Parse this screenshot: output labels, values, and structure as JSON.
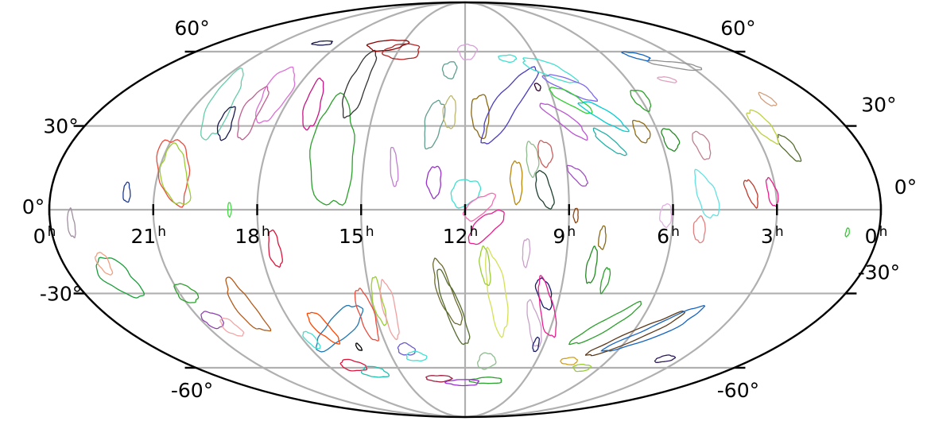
{
  "chart_data": {
    "type": "skymap",
    "projection": "mollweide",
    "grid": true,
    "dec_grid_deg": [
      -60,
      -30,
      0,
      30,
      60
    ],
    "ra_grid_hours": [
      0,
      3,
      6,
      9,
      12,
      15,
      18,
      21,
      24
    ],
    "dec_labels_left": [
      {
        "dec": 60,
        "text": "60°"
      },
      {
        "dec": 30,
        "text": "30°"
      },
      {
        "dec": 0,
        "text": "0°"
      },
      {
        "dec": -30,
        "text": "-30°"
      },
      {
        "dec": -60,
        "text": "-60°"
      }
    ],
    "dec_labels_right": [
      {
        "dec": 60,
        "text": "60°"
      },
      {
        "dec": 30,
        "text": "30°"
      },
      {
        "dec": 0,
        "text": "0°"
      },
      {
        "dec": -30,
        "text": "-30°"
      },
      {
        "dec": -60,
        "text": "-60°"
      }
    ],
    "ra_labels": [
      {
        "ra": 24,
        "value": "0",
        "unit": "h"
      },
      {
        "ra": 21,
        "value": "21",
        "unit": "h"
      },
      {
        "ra": 18,
        "value": "18",
        "unit": "h"
      },
      {
        "ra": 15,
        "value": "15",
        "unit": "h"
      },
      {
        "ra": 12,
        "value": "12",
        "unit": "h"
      },
      {
        "ra": 9,
        "value": "9",
        "unit": "h"
      },
      {
        "ra": 6,
        "value": "6",
        "unit": "h"
      },
      {
        "ra": 3,
        "value": "3",
        "unit": "h"
      },
      {
        "ra": 0,
        "value": "0",
        "unit": "h"
      }
    ],
    "contours": [
      {
        "ra": 20.6,
        "dec": 14,
        "w": 12,
        "h": 26,
        "rot": 30,
        "color": "#e74c3c"
      },
      {
        "ra": 20.5,
        "dec": 12,
        "w": 10,
        "h": 24,
        "rot": 30,
        "color": "#9acd32"
      },
      {
        "ra": 21.8,
        "dec": 6,
        "w": 3,
        "h": 7,
        "rot": 10,
        "color": "#1f3a93"
      },
      {
        "ra": 20.2,
        "dec": 38,
        "w": 9,
        "h": 28,
        "rot": 20,
        "color": "#66cdaa"
      },
      {
        "ra": 18.6,
        "dec": 42,
        "w": 10,
        "h": 22,
        "rot": 15,
        "color": "#da70d6"
      },
      {
        "ra": 19.0,
        "dec": 35,
        "w": 7,
        "h": 20,
        "rot": 10,
        "color": "#c06090"
      },
      {
        "ra": 19.6,
        "dec": 31,
        "w": 5,
        "h": 13,
        "rot": 20,
        "color": "#1a1a4e"
      },
      {
        "ra": 17.1,
        "dec": 38,
        "w": 6,
        "h": 20,
        "rot": 15,
        "color": "#c71585"
      },
      {
        "ra": 16.0,
        "dec": 20,
        "w": 18,
        "h": 40,
        "rot": 10,
        "color": "#2ca02c"
      },
      {
        "ra": 15.9,
        "dec": 46,
        "w": 7,
        "h": 27,
        "rot": 5,
        "color": "#333333"
      },
      {
        "ra": 15.7,
        "dec": 63,
        "w": 12,
        "h": 5,
        "rot": 5,
        "color": "#8b0000"
      },
      {
        "ra": 14.8,
        "dec": 60,
        "w": 12,
        "h": 7,
        "rot": -5,
        "color": "#b22222"
      },
      {
        "ra": 18.9,
        "dec": 64,
        "w": 6,
        "h": 2,
        "rot": 0,
        "color": "#1a1a4e"
      },
      {
        "ra": 14.1,
        "dec": 15,
        "w": 3,
        "h": 14,
        "rot": 10,
        "color": "#c080d0"
      },
      {
        "ra": 12.9,
        "dec": 10,
        "w": 6,
        "h": 11,
        "rot": 0,
        "color": "#9932cc"
      },
      {
        "ra": 12.0,
        "dec": 6,
        "w": 13,
        "h": 9,
        "rot": 20,
        "color": "#40e0d0"
      },
      {
        "ra": 11.4,
        "dec": -6,
        "w": 18,
        "h": 7,
        "rot": 35,
        "color": "#e91e8c"
      },
      {
        "ra": 11.6,
        "dec": 1,
        "w": 15,
        "h": 6,
        "rot": 30,
        "color": "#ff69b4"
      },
      {
        "ra": 13.0,
        "dec": 31,
        "w": 7,
        "h": 18,
        "rot": -10,
        "color": "#5f9e8f"
      },
      {
        "ra": 12.5,
        "dec": 35,
        "w": 5,
        "h": 12,
        "rot": 0,
        "color": "#bdb76b"
      },
      {
        "ra": 11.5,
        "dec": 34,
        "w": 7,
        "h": 16,
        "rot": 0,
        "color": "#8b6914"
      },
      {
        "ra": 12.6,
        "dec": 52,
        "w": 5,
        "h": 7,
        "rot": 0,
        "color": "#5f9e8f"
      },
      {
        "ra": 11.9,
        "dec": 60,
        "w": 6,
        "h": 7,
        "rot": 0,
        "color": "#d8a0d8"
      },
      {
        "ra": 10.6,
        "dec": 38,
        "w": 8,
        "h": 38,
        "rot": -40,
        "color": "#4b3cc0"
      },
      {
        "ra": 10.5,
        "dec": 10,
        "w": 5,
        "h": 15,
        "rot": 0,
        "color": "#b8860b"
      },
      {
        "ra": 10.0,
        "dec": 18,
        "w": 5,
        "h": 12,
        "rot": 0,
        "color": "#8fbc8f"
      },
      {
        "ra": 9.7,
        "dec": 7,
        "w": 6,
        "h": 14,
        "rot": 20,
        "color": "#1f3f2f"
      },
      {
        "ra": 9.6,
        "dec": 20,
        "w": 6,
        "h": 9,
        "rot": 0,
        "color": "#cd5c5c"
      },
      {
        "ra": 10.2,
        "dec": 57,
        "w": 6,
        "h": 3,
        "rot": 0,
        "color": "#40e0d0"
      },
      {
        "ra": 9.4,
        "dec": 45,
        "w": 2,
        "h": 3,
        "rot": 0,
        "color": "#300030"
      },
      {
        "ra": 8.7,
        "dec": 52,
        "w": 18,
        "h": 6,
        "rot": -30,
        "color": "#40e0d0"
      },
      {
        "ra": 8.2,
        "dec": 45,
        "w": 18,
        "h": 6,
        "rot": -30,
        "color": "#7b68ee"
      },
      {
        "ra": 8.4,
        "dec": 40,
        "w": 16,
        "h": 5,
        "rot": -35,
        "color": "#32cd32"
      },
      {
        "ra": 7.5,
        "dec": 34,
        "w": 18,
        "h": 5,
        "rot": -35,
        "color": "#00ced1"
      },
      {
        "ra": 8.8,
        "dec": 32,
        "w": 20,
        "h": 5,
        "rot": -40,
        "color": "#ba55d3"
      },
      {
        "ra": 7.6,
        "dec": 24,
        "w": 14,
        "h": 4,
        "rot": -40,
        "color": "#20b2aa"
      },
      {
        "ra": 8.7,
        "dec": 12,
        "w": 10,
        "h": 4,
        "rot": -40,
        "color": "#a050c0"
      },
      {
        "ra": 6.0,
        "dec": 40,
        "w": 6,
        "h": 8,
        "rot": 0,
        "color": "#2ca02c"
      },
      {
        "ra": 6.5,
        "dec": 28,
        "w": 6,
        "h": 8,
        "rot": 0,
        "color": "#8b6914"
      },
      {
        "ra": 5.7,
        "dec": 25,
        "w": 6,
        "h": 8,
        "rot": 0,
        "color": "#228b22"
      },
      {
        "ra": 3.5,
        "dec": 54,
        "w": 16,
        "h": 3,
        "rot": -10,
        "color": "#909090"
      },
      {
        "ra": 4.6,
        "dec": 58,
        "w": 7,
        "h": 3,
        "rot": -20,
        "color": "#1565c0"
      },
      {
        "ra": 4.5,
        "dec": 48,
        "w": 6,
        "h": 2,
        "rot": -10,
        "color": "#e0a0c0"
      },
      {
        "ra": 4.8,
        "dec": 23,
        "w": 6,
        "h": 10,
        "rot": 0,
        "color": "#c08090"
      },
      {
        "ra": 5.0,
        "dec": 5,
        "w": 8,
        "h": 17,
        "rot": 20,
        "color": "#66e0e0"
      },
      {
        "ra": 5.2,
        "dec": -7,
        "w": 5,
        "h": 9,
        "rot": 10,
        "color": "#e08080"
      },
      {
        "ra": 6.2,
        "dec": -2,
        "w": 5,
        "h": 8,
        "rot": 0,
        "color": "#e0b0e0"
      },
      {
        "ra": 3.7,
        "dec": 6,
        "w": 4,
        "h": 10,
        "rot": 20,
        "color": "#c0392b"
      },
      {
        "ra": 3.1,
        "dec": 6,
        "w": 4,
        "h": 10,
        "rot": 10,
        "color": "#e91e8c"
      },
      {
        "ra": 2.2,
        "dec": 22,
        "w": 5,
        "h": 10,
        "rot": 20,
        "color": "#556b2f"
      },
      {
        "ra": 2.6,
        "dec": 30,
        "w": 7,
        "h": 12,
        "rot": 10,
        "color": "#c0d040"
      },
      {
        "ra": 1.7,
        "dec": 40,
        "w": 4,
        "h": 5,
        "rot": 0,
        "color": "#d0a080"
      },
      {
        "ra": 0.9,
        "dec": -8,
        "w": 1.5,
        "h": 3,
        "rot": 0,
        "color": "#32cd32"
      },
      {
        "ra": 23.4,
        "dec": -5,
        "w": 3,
        "h": 10,
        "rot": 0,
        "color": "#a090a0"
      },
      {
        "ra": 22.6,
        "dec": -24,
        "w": 12,
        "h": 16,
        "rot": 40,
        "color": "#1a9f3a"
      },
      {
        "ra": 22.8,
        "dec": -19,
        "w": 5,
        "h": 8,
        "rot": 0,
        "color": "#f0a080"
      },
      {
        "ra": 20.8,
        "dec": -30,
        "w": 8,
        "h": 7,
        "rot": 0,
        "color": "#2ca02c"
      },
      {
        "ra": 20.6,
        "dec": -40,
        "w": 8,
        "h": 6,
        "rot": 20,
        "color": "#8e44ad"
      },
      {
        "ra": 20.2,
        "dec": -43,
        "w": 6,
        "h": 7,
        "rot": 0,
        "color": "#f5a5a5"
      },
      {
        "ra": 19.2,
        "dec": -35,
        "w": 8,
        "h": 20,
        "rot": 5,
        "color": "#b25b1c"
      },
      {
        "ra": 17.6,
        "dec": -14,
        "w": 5,
        "h": 13,
        "rot": 0,
        "color": "#dc143c"
      },
      {
        "ra": 18.8,
        "dec": 0,
        "w": 1.5,
        "h": 5,
        "rot": 0,
        "color": "#44dd44"
      },
      {
        "ra": 16.4,
        "dec": -43,
        "w": 7,
        "h": 30,
        "rot": -55,
        "color": "#1f77b4"
      },
      {
        "ra": 17.0,
        "dec": -43,
        "w": 6,
        "h": 13,
        "rot": 20,
        "color": "#ff4500"
      },
      {
        "ra": 15.3,
        "dec": -38,
        "w": 6,
        "h": 20,
        "rot": 0,
        "color": "#e74c3c"
      },
      {
        "ra": 14.8,
        "dec": -33,
        "w": 4,
        "h": 18,
        "rot": 0,
        "color": "#9acd32"
      },
      {
        "ra": 14.5,
        "dec": -36,
        "w": 5,
        "h": 22,
        "rot": 0,
        "color": "#f0a0a0"
      },
      {
        "ra": 17.7,
        "dec": -48,
        "w": 4,
        "h": 7,
        "rot": 0,
        "color": "#40e0d0"
      },
      {
        "ra": 16.1,
        "dec": -51,
        "w": 1.5,
        "h": 3,
        "rot": 0,
        "color": "#000000"
      },
      {
        "ra": 16.9,
        "dec": -59,
        "w": 8,
        "h": 5,
        "rot": 0,
        "color": "#dc143c"
      },
      {
        "ra": 16.2,
        "dec": -62,
        "w": 8,
        "h": 5,
        "rot": 0,
        "color": "#20c0b0"
      },
      {
        "ra": 14.3,
        "dec": -52,
        "w": 6,
        "h": 5,
        "rot": 0,
        "color": "#6a5acd"
      },
      {
        "ra": 14.0,
        "dec": -55,
        "w": 7,
        "h": 4,
        "rot": 0,
        "color": "#40e0d0"
      },
      {
        "ra": 13.3,
        "dec": -65,
        "w": 8,
        "h": 3,
        "rot": 0,
        "color": "#a02040"
      },
      {
        "ra": 12.6,
        "dec": -30,
        "w": 6,
        "h": 26,
        "rot": 20,
        "color": "#6b6b2f"
      },
      {
        "ra": 12.4,
        "dec": -36,
        "w": 6,
        "h": 30,
        "rot": 20,
        "color": "#556b2f"
      },
      {
        "ra": 11.0,
        "dec": -30,
        "w": 7,
        "h": 32,
        "rot": 15,
        "color": "#d4e157"
      },
      {
        "ra": 11.4,
        "dec": -20,
        "w": 4,
        "h": 14,
        "rot": 10,
        "color": "#9acd32"
      },
      {
        "ra": 10.2,
        "dec": -15,
        "w": 3,
        "h": 10,
        "rot": 0,
        "color": "#c8a2c8"
      },
      {
        "ra": 11.1,
        "dec": -57,
        "w": 6,
        "h": 7,
        "rot": 0,
        "color": "#8fbc8f"
      },
      {
        "ra": 9.5,
        "dec": -30,
        "w": 5,
        "h": 13,
        "rot": 30,
        "color": "#1a1a6e"
      },
      {
        "ra": 9.3,
        "dec": -36,
        "w": 5,
        "h": 25,
        "rot": 25,
        "color": "#e91e8c"
      },
      {
        "ra": 9.6,
        "dec": -42,
        "w": 4,
        "h": 20,
        "rot": 25,
        "color": "#c8a2c8"
      },
      {
        "ra": 9.3,
        "dec": -50,
        "w": 2,
        "h": 6,
        "rot": 10,
        "color": "#1a1a6e"
      },
      {
        "ra": 8.8,
        "dec": -2,
        "w": 2,
        "h": 5,
        "rot": 0,
        "color": "#8b4513"
      },
      {
        "ra": 8.0,
        "dec": -10,
        "w": 3,
        "h": 8,
        "rot": 0,
        "color": "#8b6914"
      },
      {
        "ra": 8.2,
        "dec": -20,
        "w": 4,
        "h": 13,
        "rot": 0,
        "color": "#228b22"
      },
      {
        "ra": 7.7,
        "dec": -25,
        "w": 3,
        "h": 9,
        "rot": 0,
        "color": "#2ca02c"
      },
      {
        "ra": 7.1,
        "dec": -42,
        "w": 5,
        "h": 25,
        "rot": -50,
        "color": "#2ca02c"
      },
      {
        "ra": 5.8,
        "dec": -46,
        "w": 5,
        "h": 30,
        "rot": -55,
        "color": "#5d3a1a"
      },
      {
        "ra": 5.2,
        "dec": -44,
        "w": 6,
        "h": 30,
        "rot": -55,
        "color": "#1565c0"
      },
      {
        "ra": 3.7,
        "dec": -56,
        "w": 6,
        "h": 3,
        "rot": 0,
        "color": "#2e1a5e"
      },
      {
        "ra": 6.8,
        "dec": -60,
        "w": 6,
        "h": 3,
        "rot": -10,
        "color": "#9acd32"
      },
      {
        "ra": 7.6,
        "dec": -57,
        "w": 6,
        "h": 3,
        "rot": -10,
        "color": "#d4a017"
      },
      {
        "ra": 10.9,
        "dec": -66,
        "w": 10,
        "h": 3,
        "rot": 0,
        "color": "#2ca02c"
      },
      {
        "ra": 12.1,
        "dec": -67,
        "w": 10,
        "h": 3,
        "rot": 0,
        "color": "#9932cc"
      }
    ]
  }
}
